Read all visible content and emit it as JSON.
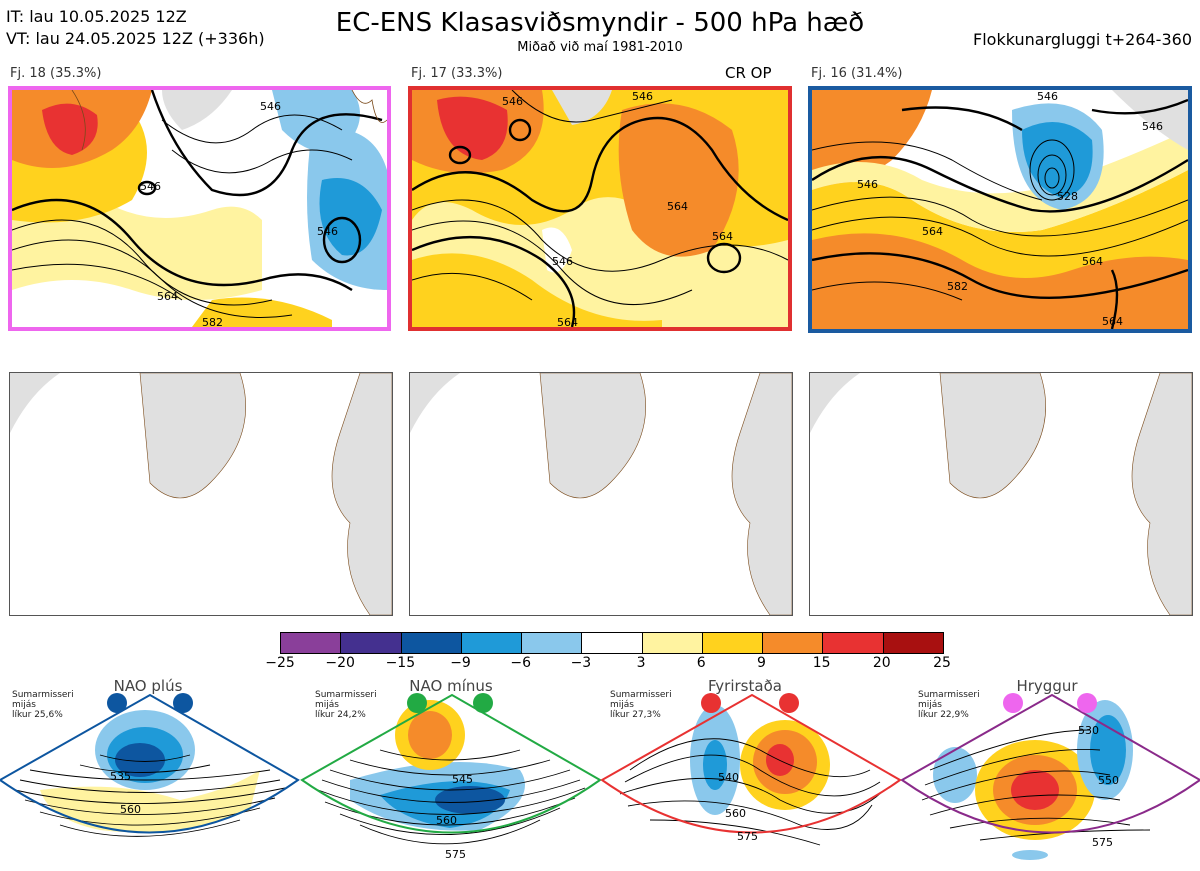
{
  "header": {
    "it_line": "IT: lau 10.05.2025 12Z",
    "vt_line": "VT: lau 24.05.2025 12Z  (+336h)",
    "title": "EC-ENS Klasasviðsmyndir - 500 hPa hæð",
    "subtitle": "Miðað við maí 1981-2010",
    "window": "Flokkunargluggi t+264-360"
  },
  "clusters": [
    {
      "label": "Fj. 18 (35.3%)",
      "frame_color": "#ee66ee",
      "contours": [
        "546",
        "546",
        "546",
        "564",
        "582"
      ],
      "badge": ""
    },
    {
      "label": "Fj. 17 (33.3%)",
      "frame_color": "#e03030",
      "contours": [
        "546",
        "546",
        "564",
        "564",
        "564",
        "546"
      ],
      "badge": "CR OP"
    },
    {
      "label": "Fj. 16 (31.4%)",
      "frame_color": "#1a5aa0",
      "contours": [
        "546",
        "546",
        "546",
        "564",
        "564",
        "582",
        "564",
        "528"
      ],
      "badge": ""
    }
  ],
  "colorbar": {
    "ticks": [
      "−25",
      "−20",
      "−15",
      "−9",
      "−6",
      "−3",
      "3",
      "6",
      "9",
      "15",
      "20",
      "25"
    ],
    "colors": [
      "#8a3f9a",
      "#44308f",
      "#0d56a0",
      "#1f9ad8",
      "#8ac8ec",
      "#ffffff",
      "#fff3a0",
      "#ffd21e",
      "#f58b2a",
      "#e83232",
      "#a81010"
    ]
  },
  "regimes": [
    {
      "name": "NAO plús",
      "note_line1": "Sumarmisseri",
      "note_line2": "mijás",
      "note_line3": "líkur 25,6%",
      "dot_color": "#0d56a0",
      "frame_color": "#0d56a0",
      "contours": [
        "535",
        "560"
      ]
    },
    {
      "name": "NAO mínus",
      "note_line1": "Sumarmisseri",
      "note_line2": "mijás",
      "note_line3": "líkur 24,2%",
      "dot_color": "#22aa44",
      "frame_color": "#22aa44",
      "contours": [
        "545",
        "560",
        "575"
      ]
    },
    {
      "name": "Fyrirstaða",
      "note_line1": "Sumarmisseri",
      "note_line2": "mijás",
      "note_line3": "líkur 27,3%",
      "dot_color": "#e83232",
      "frame_color": "#e83232",
      "contours": [
        "540",
        "560",
        "575"
      ]
    },
    {
      "name": "Hryggur",
      "note_line1": "Sumarmisseri",
      "note_line2": "mijás",
      "note_line3": "líkur 22,9%",
      "dot_color": "#ee66ee",
      "frame_color": "#8a2a8a",
      "contours": [
        "530",
        "550",
        "575"
      ]
    }
  ]
}
